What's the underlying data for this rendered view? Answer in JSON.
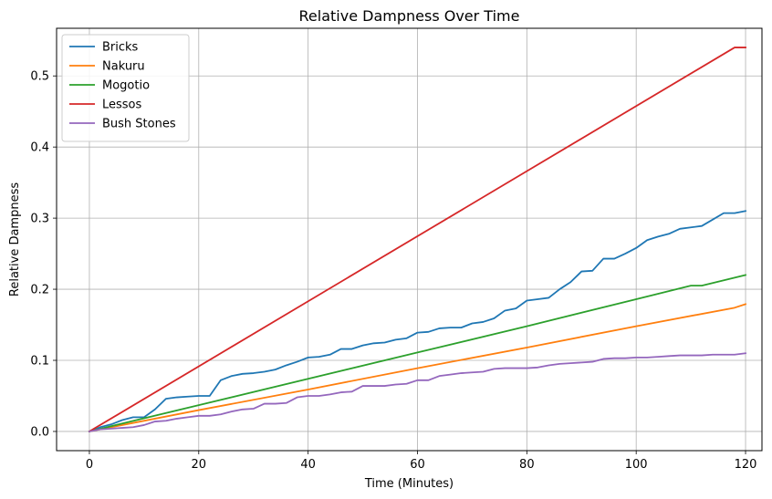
{
  "chart_data": {
    "type": "line",
    "title": "Relative Dampness Over Time",
    "xlabel": "Time (Minutes)",
    "ylabel": "Relative Dampness",
    "xlim": [
      -6,
      123
    ],
    "ylim": [
      -0.027,
      0.567
    ],
    "xticks": [
      0,
      20,
      40,
      60,
      80,
      100,
      120
    ],
    "yticks": [
      0.0,
      0.1,
      0.2,
      0.3,
      0.4,
      0.5
    ],
    "xtick_labels": [
      "0",
      "20",
      "40",
      "60",
      "80",
      "100",
      "120"
    ],
    "ytick_labels": [
      "0.0",
      "0.1",
      "0.2",
      "0.3",
      "0.4",
      "0.5"
    ],
    "grid": true,
    "legend_position": "top-left",
    "series": [
      {
        "name": "Bricks",
        "color": "#1f77b4",
        "x": [
          0,
          2,
          4,
          6,
          8,
          10,
          12,
          14,
          16,
          18,
          20,
          22,
          24,
          26,
          28,
          30,
          32,
          34,
          36,
          38,
          40,
          42,
          44,
          46,
          48,
          50,
          52,
          54,
          56,
          58,
          60,
          62,
          64,
          66,
          68,
          70,
          72,
          74,
          76,
          78,
          80,
          82,
          84,
          86,
          88,
          90,
          92,
          94,
          96,
          98,
          100,
          102,
          104,
          106,
          108,
          110,
          112,
          114,
          116,
          118,
          120
        ],
        "y": [
          0.0,
          0.006,
          0.01,
          0.016,
          0.02,
          0.02,
          0.031,
          0.046,
          0.048,
          0.049,
          0.05,
          0.05,
          0.072,
          0.078,
          0.081,
          0.082,
          0.084,
          0.087,
          0.093,
          0.098,
          0.104,
          0.105,
          0.108,
          0.116,
          0.116,
          0.121,
          0.124,
          0.125,
          0.129,
          0.131,
          0.139,
          0.14,
          0.145,
          0.146,
          0.146,
          0.152,
          0.154,
          0.159,
          0.17,
          0.173,
          0.184,
          0.186,
          0.188,
          0.2,
          0.21,
          0.225,
          0.226,
          0.243,
          0.243,
          0.25,
          0.258,
          0.269,
          0.274,
          0.278,
          0.285,
          0.287,
          0.289,
          0.298,
          0.307,
          0.307,
          0.31
        ]
      },
      {
        "name": "Nakuru",
        "color": "#ff7f0e",
        "x": [
          0,
          20,
          40,
          60,
          80,
          100,
          118,
          120
        ],
        "y": [
          0.0,
          0.03,
          0.059,
          0.089,
          0.118,
          0.148,
          0.174,
          0.179
        ]
      },
      {
        "name": "Mogotio",
        "color": "#2ca02c",
        "x": [
          0,
          20,
          40,
          60,
          80,
          100,
          110,
          112,
          120
        ],
        "y": [
          0.0,
          0.037,
          0.074,
          0.111,
          0.148,
          0.186,
          0.205,
          0.205,
          0.22
        ]
      },
      {
        "name": "Lessos",
        "color": "#d62728",
        "x": [
          0,
          118,
          120
        ],
        "y": [
          0.0,
          0.54,
          0.54
        ]
      },
      {
        "name": "Bush Stones",
        "color": "#9467bd",
        "x": [
          0,
          2,
          4,
          6,
          8,
          10,
          12,
          14,
          16,
          18,
          20,
          22,
          24,
          26,
          28,
          30,
          32,
          34,
          36,
          38,
          40,
          42,
          44,
          46,
          48,
          50,
          52,
          54,
          56,
          58,
          60,
          62,
          64,
          66,
          68,
          70,
          72,
          74,
          76,
          78,
          80,
          82,
          84,
          86,
          88,
          90,
          92,
          94,
          96,
          98,
          100,
          102,
          104,
          106,
          108,
          110,
          112,
          114,
          116,
          118,
          120
        ],
        "y": [
          0.0,
          0.003,
          0.004,
          0.005,
          0.006,
          0.009,
          0.014,
          0.015,
          0.018,
          0.02,
          0.022,
          0.022,
          0.024,
          0.028,
          0.031,
          0.032,
          0.039,
          0.039,
          0.04,
          0.048,
          0.05,
          0.05,
          0.052,
          0.055,
          0.056,
          0.064,
          0.064,
          0.064,
          0.066,
          0.067,
          0.072,
          0.072,
          0.078,
          0.08,
          0.082,
          0.083,
          0.084,
          0.088,
          0.089,
          0.089,
          0.089,
          0.09,
          0.093,
          0.095,
          0.096,
          0.097,
          0.098,
          0.102,
          0.103,
          0.103,
          0.104,
          0.104,
          0.105,
          0.106,
          0.107,
          0.107,
          0.107,
          0.108,
          0.108,
          0.108,
          0.11
        ]
      }
    ]
  }
}
